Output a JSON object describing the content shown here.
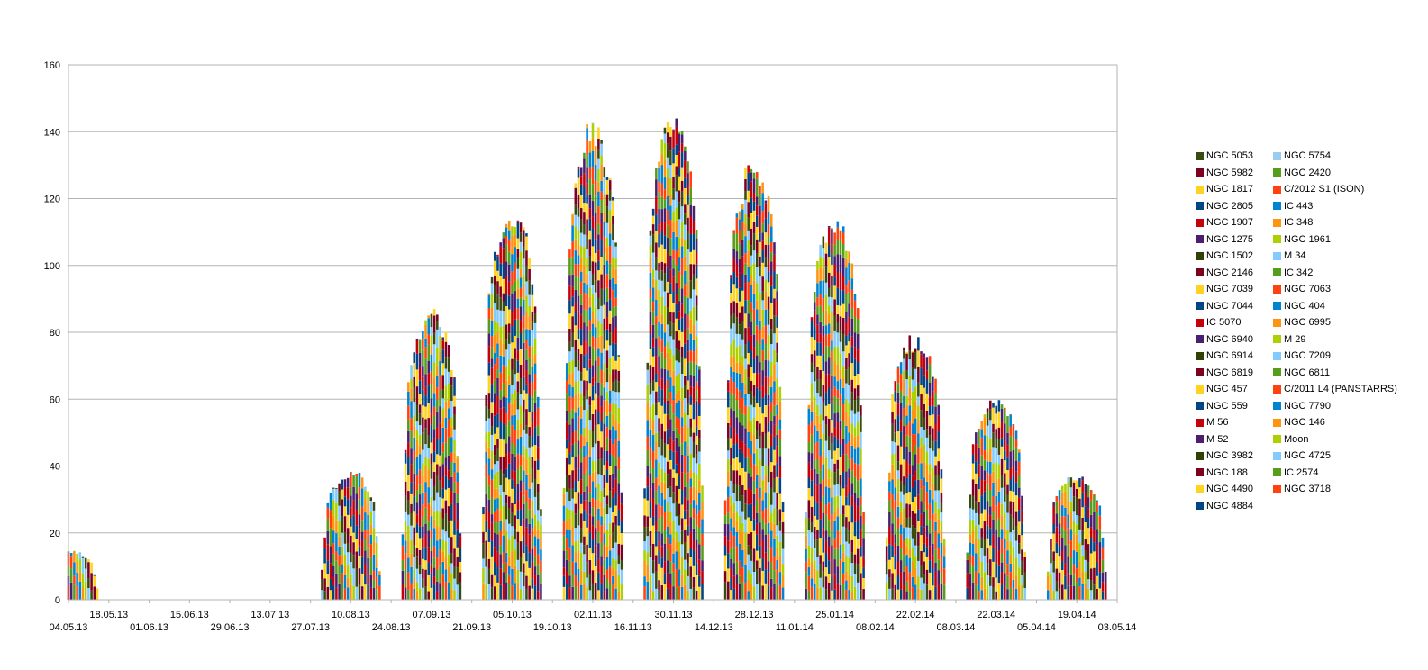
{
  "chart_data": {
    "type": "bar",
    "stacked": true,
    "title": "",
    "xlabel": "",
    "ylabel": "",
    "ylim": [
      0,
      160
    ],
    "yticks": [
      0,
      20,
      40,
      60,
      80,
      100,
      120,
      140,
      160
    ],
    "grid": true,
    "legend_position": "right",
    "x_range": [
      "04.05.13",
      "03.05.14"
    ],
    "x_tick_labels": [
      "04.05.13",
      "18.05.13",
      "01.06.13",
      "15.06.13",
      "29.06.13",
      "13.07.13",
      "27.07.13",
      "10.08.13",
      "24.08.13",
      "07.09.13",
      "21.09.13",
      "05.10.13",
      "19.10.13",
      "02.11.13",
      "16.11.13",
      "30.11.13",
      "14.12.13",
      "28.12.13",
      "11.01.14",
      "25.01.14",
      "08.02.14",
      "22.02.14",
      "08.03.14",
      "22.03.14",
      "05.04.14",
      "19.04.14",
      "03.05.14"
    ],
    "series": [
      {
        "name": "NGC 5053",
        "color": "#3a4b12"
      },
      {
        "name": "NGC 5754",
        "color": "#99ccee"
      },
      {
        "name": "NGC 5982",
        "color": "#7e0021"
      },
      {
        "name": "NGC 2420",
        "color": "#579d1c"
      },
      {
        "name": "NGC 1817",
        "color": "#ffd320"
      },
      {
        "name": "C/2012 S1 (ISON)",
        "color": "#ff420e"
      },
      {
        "name": "NGC 2805",
        "color": "#004586"
      },
      {
        "name": "IC 443",
        "color": "#0084d1"
      },
      {
        "name": "NGC 1907",
        "color": "#c5000b"
      },
      {
        "name": "IC 348",
        "color": "#ff950e"
      },
      {
        "name": "NGC 1275",
        "color": "#4b1f6f"
      },
      {
        "name": "NGC 1961",
        "color": "#aecf00"
      },
      {
        "name": "NGC 1502",
        "color": "#314004"
      },
      {
        "name": "M 34",
        "color": "#83caff"
      },
      {
        "name": "NGC 2146",
        "color": "#7e0021"
      },
      {
        "name": "IC 342",
        "color": "#579d1c"
      },
      {
        "name": "NGC 7039",
        "color": "#ffd320"
      },
      {
        "name": "NGC 7063",
        "color": "#ff420e"
      },
      {
        "name": "NGC 7044",
        "color": "#004586"
      },
      {
        "name": "NGC 404",
        "color": "#0084d1"
      },
      {
        "name": "IC 5070",
        "color": "#c5000b"
      },
      {
        "name": "NGC 6995",
        "color": "#ff950e"
      },
      {
        "name": "NGC 6940",
        "color": "#4b1f6f"
      },
      {
        "name": "M 29",
        "color": "#aecf00"
      },
      {
        "name": "NGC 6914",
        "color": "#314004"
      },
      {
        "name": "NGC 7209",
        "color": "#83caff"
      },
      {
        "name": "NGC 6819",
        "color": "#7e0021"
      },
      {
        "name": "NGC 6811",
        "color": "#579d1c"
      },
      {
        "name": "NGC 457",
        "color": "#ffd320"
      },
      {
        "name": "C/2011 L4 (PANSTARRS)",
        "color": "#ff420e"
      },
      {
        "name": "NGC 559",
        "color": "#004586"
      },
      {
        "name": "NGC 7790",
        "color": "#0084d1"
      },
      {
        "name": "M 56",
        "color": "#c5000b"
      },
      {
        "name": "NGC 146",
        "color": "#ff950e"
      },
      {
        "name": "M 52",
        "color": "#4b1f6f"
      },
      {
        "name": "Moon",
        "color": "#aecf00"
      },
      {
        "name": "NGC 3982",
        "color": "#314004"
      },
      {
        "name": "NGC 4725",
        "color": "#83caff"
      },
      {
        "name": "NGC 188",
        "color": "#7e0021"
      },
      {
        "name": "IC 2574",
        "color": "#579d1c"
      },
      {
        "name": "NGC 4490",
        "color": "#ffd320"
      },
      {
        "name": "NGC 3718",
        "color": "#ff420e"
      },
      {
        "name": "NGC 4884",
        "color": "#004586"
      }
    ],
    "monthly_total_envelope": [
      {
        "period": "04.05.13",
        "date": "2013-05-04",
        "total": 15
      },
      {
        "period": "10.08.13",
        "date": "2013-08-10",
        "total": 39
      },
      {
        "period": "07.09.13",
        "date": "2013-09-07",
        "total": 88
      },
      {
        "period": "05.10.13",
        "date": "2013-10-05",
        "total": 120
      },
      {
        "period": "02.11.13",
        "date": "2013-11-02",
        "total": 145
      },
      {
        "period": "30.11.13",
        "date": "2013-11-30",
        "total": 147
      },
      {
        "period": "28.12.13",
        "date": "2013-12-28",
        "total": 133
      },
      {
        "period": "25.01.14",
        "date": "2014-01-25",
        "total": 116
      },
      {
        "period": "22.02.14",
        "date": "2014-02-22",
        "total": 80
      },
      {
        "period": "22.03.14",
        "date": "2014-03-22",
        "total": 62
      },
      {
        "period": "19.04.14",
        "date": "2014-04-19",
        "total": 38
      }
    ]
  }
}
